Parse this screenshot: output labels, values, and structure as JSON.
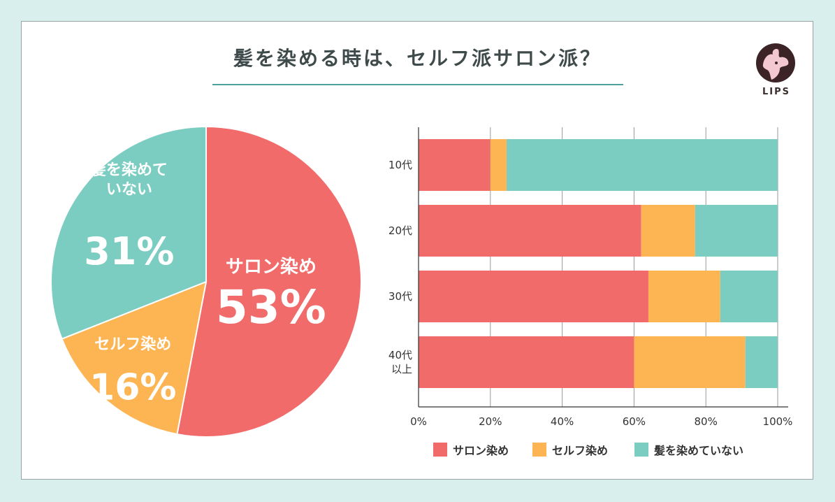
{
  "title": "髪を染める時は、セルフ派サロン派？",
  "logo_text": "LIPS",
  "colors": {
    "salon": "#f26b6b",
    "self": "#fdb453",
    "none": "#7ccdc1",
    "axis": "#333333",
    "text": "#333333",
    "grid": "#999999"
  },
  "chart_data": [
    {
      "type": "pie",
      "title": "",
      "slices": [
        {
          "label": "サロン染め",
          "value": 53,
          "display": "53%"
        },
        {
          "label": "セルフ染め",
          "value": 16,
          "display": "16%"
        },
        {
          "label": "髪を染めていない",
          "label_lines": [
            "髪を染めて",
            "いない"
          ],
          "value": 31,
          "display": "31%"
        }
      ]
    },
    {
      "type": "bar",
      "orientation": "horizontal",
      "stacked": true,
      "categories": [
        "10代",
        "20代",
        "30代",
        "40代以上"
      ],
      "category_lines": [
        [
          "10代"
        ],
        [
          "20代"
        ],
        [
          "30代"
        ],
        [
          "40代",
          "以上"
        ]
      ],
      "series": [
        {
          "name": "サロン染め",
          "values": [
            20,
            62,
            64,
            60
          ]
        },
        {
          "name": "セルフ染め",
          "values": [
            4.5,
            15,
            20,
            31
          ]
        },
        {
          "name": "髪を染めていない",
          "values": [
            75.5,
            23,
            16,
            9
          ]
        }
      ],
      "xlim": [
        0,
        100
      ],
      "xticks": [
        "0%",
        "20%",
        "40%",
        "60%",
        "80%",
        "100%"
      ],
      "grid": true,
      "legend": "bottom"
    }
  ]
}
